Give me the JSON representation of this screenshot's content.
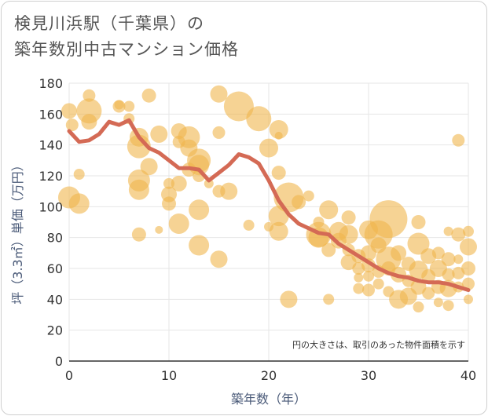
{
  "title_line1": "検見川浜駅（千葉県）の",
  "title_line2": "築年数別中古マンション価格",
  "chart_data": {
    "type": "scatter",
    "xlabel": "築年数（年）",
    "ylabel": "坪（3.3㎡）単価（万円）",
    "xlim": [
      0,
      40
    ],
    "ylim": [
      0,
      180
    ],
    "xticks": [
      0,
      10,
      20,
      30,
      40
    ],
    "yticks": [
      0,
      20,
      40,
      60,
      80,
      100,
      120,
      140,
      160,
      180
    ],
    "note": "円の大きさは、取引のあった物件面積を示す",
    "grid": true,
    "colors": {
      "bubble": "#f0b64c",
      "line": "#d46a55",
      "grid": "#e6e6e6",
      "axis": "#333333"
    },
    "trend": {
      "x": [
        0,
        1,
        2,
        3,
        4,
        5,
        6,
        7,
        8,
        9,
        10,
        11,
        12,
        13,
        14,
        15,
        16,
        17,
        18,
        19,
        20,
        21,
        22,
        23,
        24,
        25,
        26,
        27,
        28,
        29,
        30,
        31,
        32,
        33,
        34,
        35,
        36,
        37,
        38,
        39,
        40
      ],
      "y": [
        149,
        142,
        143,
        147,
        155,
        153,
        156,
        145,
        138,
        135,
        130,
        125,
        125,
        124,
        117,
        122,
        127,
        134,
        132,
        128,
        117,
        104,
        95,
        89,
        86,
        83,
        82,
        76,
        72,
        68,
        64,
        60,
        57,
        55,
        54,
        52,
        51,
        51,
        50,
        48,
        46
      ]
    },
    "bubbles": [
      {
        "x": 0,
        "y": 106,
        "s": 14
      },
      {
        "x": 0,
        "y": 162,
        "s": 10
      },
      {
        "x": 0.3,
        "y": 153,
        "s": 8
      },
      {
        "x": 1,
        "y": 102,
        "s": 13
      },
      {
        "x": 1,
        "y": 121,
        "s": 7
      },
      {
        "x": 2,
        "y": 162,
        "s": 16
      },
      {
        "x": 2,
        "y": 155,
        "s": 10
      },
      {
        "x": 2,
        "y": 172,
        "s": 8
      },
      {
        "x": 5,
        "y": 165,
        "s": 8
      },
      {
        "x": 5,
        "y": 166,
        "s": 6
      },
      {
        "x": 6,
        "y": 165,
        "s": 7
      },
      {
        "x": 6,
        "y": 157,
        "s": 7
      },
      {
        "x": 7,
        "y": 145,
        "s": 12
      },
      {
        "x": 7,
        "y": 139,
        "s": 15
      },
      {
        "x": 7,
        "y": 117,
        "s": 14
      },
      {
        "x": 7,
        "y": 111,
        "s": 13
      },
      {
        "x": 7,
        "y": 82,
        "s": 9
      },
      {
        "x": 8,
        "y": 172,
        "s": 9
      },
      {
        "x": 8,
        "y": 126,
        "s": 11
      },
      {
        "x": 9,
        "y": 147,
        "s": 11
      },
      {
        "x": 9,
        "y": 85,
        "s": 5
      },
      {
        "x": 10,
        "y": 115,
        "s": 7
      },
      {
        "x": 10,
        "y": 108,
        "s": 10
      },
      {
        "x": 10,
        "y": 102,
        "s": 9
      },
      {
        "x": 11,
        "y": 149,
        "s": 10
      },
      {
        "x": 11,
        "y": 142,
        "s": 8
      },
      {
        "x": 11,
        "y": 115,
        "s": 10
      },
      {
        "x": 11,
        "y": 89,
        "s": 13
      },
      {
        "x": 12,
        "y": 145,
        "s": 14
      },
      {
        "x": 12,
        "y": 138,
        "s": 11
      },
      {
        "x": 12,
        "y": 124,
        "s": 9
      },
      {
        "x": 13,
        "y": 130,
        "s": 15
      },
      {
        "x": 13,
        "y": 127,
        "s": 13
      },
      {
        "x": 13,
        "y": 120,
        "s": 8
      },
      {
        "x": 13,
        "y": 98,
        "s": 13
      },
      {
        "x": 13,
        "y": 75,
        "s": 13
      },
      {
        "x": 14,
        "y": 115,
        "s": 6
      },
      {
        "x": 15,
        "y": 173,
        "s": 11
      },
      {
        "x": 15,
        "y": 148,
        "s": 8
      },
      {
        "x": 15,
        "y": 110,
        "s": 8
      },
      {
        "x": 15,
        "y": 66,
        "s": 11
      },
      {
        "x": 16,
        "y": 110,
        "s": 11
      },
      {
        "x": 17,
        "y": 165,
        "s": 19
      },
      {
        "x": 18,
        "y": 88,
        "s": 7
      },
      {
        "x": 19,
        "y": 157,
        "s": 16
      },
      {
        "x": 20,
        "y": 138,
        "s": 12
      },
      {
        "x": 20,
        "y": 87,
        "s": 6
      },
      {
        "x": 21,
        "y": 150,
        "s": 12
      },
      {
        "x": 21,
        "y": 146,
        "s": 5
      },
      {
        "x": 21,
        "y": 122,
        "s": 9
      },
      {
        "x": 21,
        "y": 94,
        "s": 13
      },
      {
        "x": 21,
        "y": 84,
        "s": 12
      },
      {
        "x": 22,
        "y": 106,
        "s": 19
      },
      {
        "x": 22,
        "y": 40,
        "s": 11
      },
      {
        "x": 23,
        "y": 103,
        "s": 9
      },
      {
        "x": 24,
        "y": 107,
        "s": 7
      },
      {
        "x": 25,
        "y": 82,
        "s": 16
      },
      {
        "x": 25,
        "y": 80,
        "s": 13
      },
      {
        "x": 25,
        "y": 90,
        "s": 7
      },
      {
        "x": 26,
        "y": 98,
        "s": 12
      },
      {
        "x": 26,
        "y": 72,
        "s": 9
      },
      {
        "x": 26,
        "y": 40,
        "s": 7
      },
      {
        "x": 27,
        "y": 84,
        "s": 12
      },
      {
        "x": 27,
        "y": 78,
        "s": 10
      },
      {
        "x": 28,
        "y": 93,
        "s": 9
      },
      {
        "x": 28,
        "y": 82,
        "s": 12
      },
      {
        "x": 28,
        "y": 72,
        "s": 8
      },
      {
        "x": 28,
        "y": 64,
        "s": 10
      },
      {
        "x": 29,
        "y": 68,
        "s": 9
      },
      {
        "x": 29,
        "y": 60,
        "s": 8
      },
      {
        "x": 29,
        "y": 54,
        "s": 6
      },
      {
        "x": 29,
        "y": 47,
        "s": 7
      },
      {
        "x": 30,
        "y": 85,
        "s": 12
      },
      {
        "x": 30,
        "y": 70,
        "s": 10
      },
      {
        "x": 30,
        "y": 62,
        "s": 9
      },
      {
        "x": 30,
        "y": 55,
        "s": 7
      },
      {
        "x": 30,
        "y": 46,
        "s": 8
      },
      {
        "x": 31,
        "y": 82,
        "s": 18
      },
      {
        "x": 31,
        "y": 75,
        "s": 10
      },
      {
        "x": 31,
        "y": 58,
        "s": 8
      },
      {
        "x": 31,
        "y": 50,
        "s": 7
      },
      {
        "x": 32,
        "y": 92,
        "s": 24
      },
      {
        "x": 32,
        "y": 66,
        "s": 16
      },
      {
        "x": 32,
        "y": 60,
        "s": 9
      },
      {
        "x": 32,
        "y": 45,
        "s": 7
      },
      {
        "x": 33,
        "y": 70,
        "s": 10
      },
      {
        "x": 33,
        "y": 56,
        "s": 10
      },
      {
        "x": 33,
        "y": 40,
        "s": 12
      },
      {
        "x": 34,
        "y": 63,
        "s": 9
      },
      {
        "x": 34,
        "y": 52,
        "s": 8
      },
      {
        "x": 34,
        "y": 42,
        "s": 11
      },
      {
        "x": 35,
        "y": 90,
        "s": 9
      },
      {
        "x": 35,
        "y": 76,
        "s": 14
      },
      {
        "x": 35,
        "y": 59,
        "s": 12
      },
      {
        "x": 35,
        "y": 48,
        "s": 10
      },
      {
        "x": 35,
        "y": 35,
        "s": 7
      },
      {
        "x": 36,
        "y": 68,
        "s": 10
      },
      {
        "x": 36,
        "y": 55,
        "s": 9
      },
      {
        "x": 36,
        "y": 44,
        "s": 8
      },
      {
        "x": 37,
        "y": 70,
        "s": 8
      },
      {
        "x": 37,
        "y": 60,
        "s": 11
      },
      {
        "x": 37,
        "y": 48,
        "s": 9
      },
      {
        "x": 37,
        "y": 38,
        "s": 6
      },
      {
        "x": 38,
        "y": 84,
        "s": 6
      },
      {
        "x": 38,
        "y": 66,
        "s": 9
      },
      {
        "x": 38,
        "y": 56,
        "s": 8
      },
      {
        "x": 38,
        "y": 47,
        "s": 11
      },
      {
        "x": 38,
        "y": 36,
        "s": 7
      },
      {
        "x": 39,
        "y": 143,
        "s": 8
      },
      {
        "x": 39,
        "y": 82,
        "s": 9
      },
      {
        "x": 39,
        "y": 66,
        "s": 6
      },
      {
        "x": 39,
        "y": 57,
        "s": 8
      },
      {
        "x": 39,
        "y": 48,
        "s": 7
      },
      {
        "x": 40,
        "y": 84,
        "s": 7
      },
      {
        "x": 40,
        "y": 74,
        "s": 11
      },
      {
        "x": 40,
        "y": 60,
        "s": 9
      },
      {
        "x": 40,
        "y": 50,
        "s": 8
      },
      {
        "x": 40,
        "y": 40,
        "s": 6
      }
    ]
  }
}
